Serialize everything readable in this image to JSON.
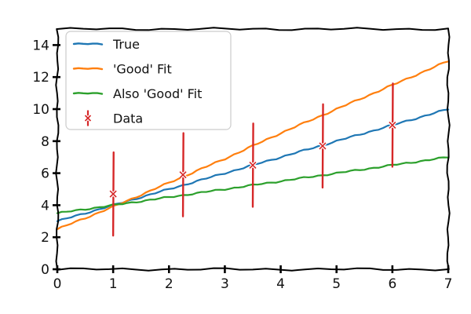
{
  "chart_data": {
    "type": "line",
    "title": "",
    "xlabel": "",
    "ylabel": "",
    "xlim": [
      0,
      7
    ],
    "ylim": [
      0,
      15
    ],
    "x_ticks": [
      "0",
      "1",
      "2",
      "3",
      "4",
      "5",
      "6",
      "7"
    ],
    "y_ticks": [
      "0",
      "2",
      "4",
      "6",
      "8",
      "10",
      "12",
      "14"
    ],
    "x": [
      0,
      1,
      2,
      3,
      4,
      5,
      6,
      7
    ],
    "grid": false,
    "legend_position": "top-left",
    "series": [
      {
        "name": "True",
        "kind": "line",
        "color": "#1f77b4",
        "values": [
          3.0,
          4.0,
          5.0,
          6.0,
          7.0,
          8.0,
          9.0,
          10.0
        ]
      },
      {
        "name": "'Good' Fit",
        "kind": "line",
        "color": "#ff7f0e",
        "values": [
          2.5,
          3.9,
          5.4,
          6.9,
          8.5,
          10.0,
          11.5,
          13.0
        ]
      },
      {
        "name": "Also 'Good' Fit",
        "kind": "line",
        "color": "#2ca02c",
        "values": [
          3.5,
          4.0,
          4.5,
          5.0,
          5.5,
          6.0,
          6.5,
          7.0
        ]
      }
    ],
    "data_points": {
      "name": "Data",
      "color": "#d62728",
      "x": [
        1.0,
        2.25,
        3.5,
        4.75,
        6.0
      ],
      "y": [
        4.7,
        5.9,
        6.5,
        7.7,
        9.0
      ],
      "yerr": [
        2.6,
        2.6,
        2.6,
        2.6,
        2.6
      ]
    }
  }
}
